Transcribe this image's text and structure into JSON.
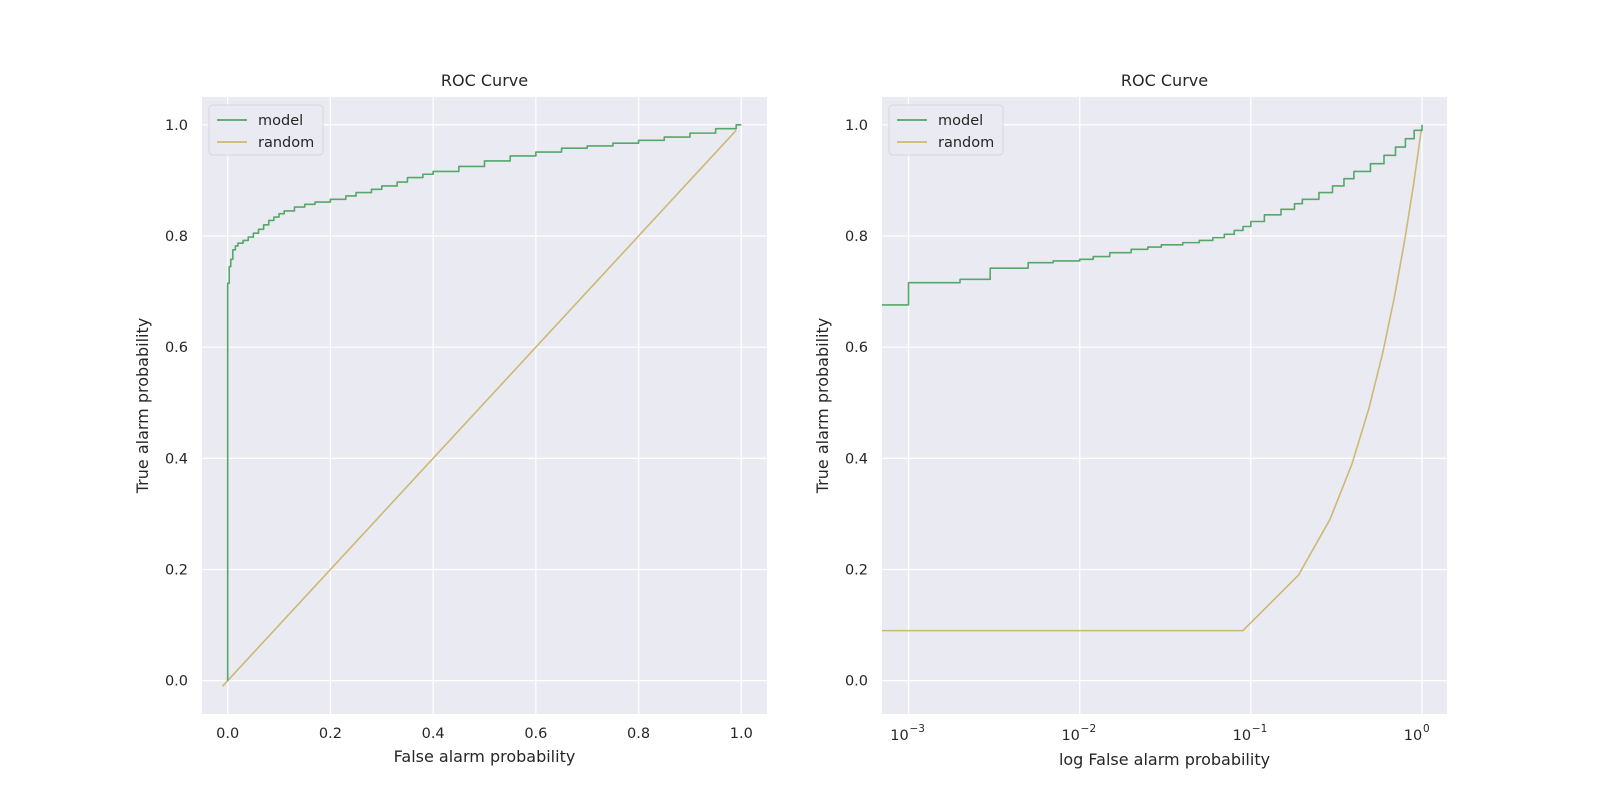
{
  "chart_data": [
    {
      "type": "line",
      "title": "ROC Curve",
      "xlabel": "False alarm probability",
      "ylabel": "True alarm probability",
      "xscale": "linear",
      "xlim": [
        -0.05,
        1.05
      ],
      "ylim": [
        -0.06,
        1.05
      ],
      "xticks": [
        0.0,
        0.2,
        0.4,
        0.6,
        0.8,
        1.0
      ],
      "xtick_labels": [
        "0.0",
        "0.2",
        "0.4",
        "0.6",
        "0.8",
        "1.0"
      ],
      "yticks": [
        0.0,
        0.2,
        0.4,
        0.6,
        0.8,
        1.0
      ],
      "ytick_labels": [
        "0.0",
        "0.2",
        "0.4",
        "0.6",
        "0.8",
        "1.0"
      ],
      "grid": true,
      "legend_position": "top-left",
      "series": [
        {
          "name": "model",
          "color": "#55a868",
          "step": true,
          "x": [
            0.0,
            0.0,
            0.003,
            0.003,
            0.006,
            0.01,
            0.015,
            0.02,
            0.03,
            0.04,
            0.05,
            0.06,
            0.07,
            0.08,
            0.09,
            0.1,
            0.11,
            0.13,
            0.15,
            0.17,
            0.2,
            0.23,
            0.25,
            0.28,
            0.3,
            0.33,
            0.35,
            0.38,
            0.4,
            0.45,
            0.5,
            0.55,
            0.6,
            0.65,
            0.7,
            0.75,
            0.8,
            0.85,
            0.9,
            0.95,
            0.99,
            1.0
          ],
          "y": [
            0.0,
            0.715,
            0.715,
            0.745,
            0.758,
            0.775,
            0.782,
            0.787,
            0.792,
            0.798,
            0.805,
            0.812,
            0.82,
            0.828,
            0.834,
            0.84,
            0.845,
            0.852,
            0.857,
            0.861,
            0.866,
            0.872,
            0.878,
            0.884,
            0.89,
            0.897,
            0.905,
            0.911,
            0.916,
            0.925,
            0.935,
            0.944,
            0.951,
            0.958,
            0.962,
            0.967,
            0.972,
            0.978,
            0.985,
            0.993,
            1.0,
            1.0
          ]
        },
        {
          "name": "random",
          "color": "#ccb974",
          "step": false,
          "x": [
            -0.01,
            0.99
          ],
          "y": [
            -0.01,
            0.99
          ]
        }
      ]
    },
    {
      "type": "line",
      "title": "ROC Curve",
      "xlabel": "log False alarm probability",
      "ylabel": "True alarm probability",
      "xscale": "log",
      "xlim": [
        0.0007,
        1.4
      ],
      "ylim": [
        -0.06,
        1.05
      ],
      "xticks": [
        0.001,
        0.01,
        0.1,
        1.0
      ],
      "xtick_labels": [
        {
          "base": "10",
          "exp": "−3"
        },
        {
          "base": "10",
          "exp": "−2"
        },
        {
          "base": "10",
          "exp": "−1"
        },
        {
          "base": "10",
          "exp": "0"
        }
      ],
      "yticks": [
        0.0,
        0.2,
        0.4,
        0.6,
        0.8,
        1.0
      ],
      "ytick_labels": [
        "0.0",
        "0.2",
        "0.4",
        "0.6",
        "0.8",
        "1.0"
      ],
      "grid": true,
      "legend_position": "top-left",
      "series": [
        {
          "name": "model",
          "color": "#55a868",
          "step": true,
          "x": [
            0.0007,
            0.001,
            0.001,
            0.002,
            0.002,
            0.003,
            0.003,
            0.005,
            0.005,
            0.007,
            0.01,
            0.012,
            0.015,
            0.02,
            0.025,
            0.03,
            0.04,
            0.05,
            0.06,
            0.07,
            0.08,
            0.09,
            0.1,
            0.12,
            0.15,
            0.18,
            0.2,
            0.25,
            0.3,
            0.35,
            0.4,
            0.5,
            0.6,
            0.7,
            0.8,
            0.9,
            1.0
          ],
          "y": [
            0.676,
            0.676,
            0.716,
            0.716,
            0.722,
            0.722,
            0.742,
            0.745,
            0.752,
            0.755,
            0.758,
            0.763,
            0.77,
            0.776,
            0.78,
            0.784,
            0.788,
            0.792,
            0.797,
            0.803,
            0.81,
            0.817,
            0.826,
            0.838,
            0.848,
            0.858,
            0.866,
            0.878,
            0.89,
            0.903,
            0.916,
            0.93,
            0.945,
            0.96,
            0.975,
            0.99,
            1.0
          ]
        },
        {
          "name": "random",
          "color": "#ccb974",
          "step": false,
          "x": [
            0.0007,
            0.09,
            0.19,
            0.29,
            0.39,
            0.49,
            0.59,
            0.69,
            0.79,
            0.89,
            0.99
          ],
          "y": [
            0.09,
            0.09,
            0.19,
            0.29,
            0.39,
            0.49,
            0.59,
            0.69,
            0.79,
            0.89,
            0.99
          ]
        }
      ]
    }
  ]
}
